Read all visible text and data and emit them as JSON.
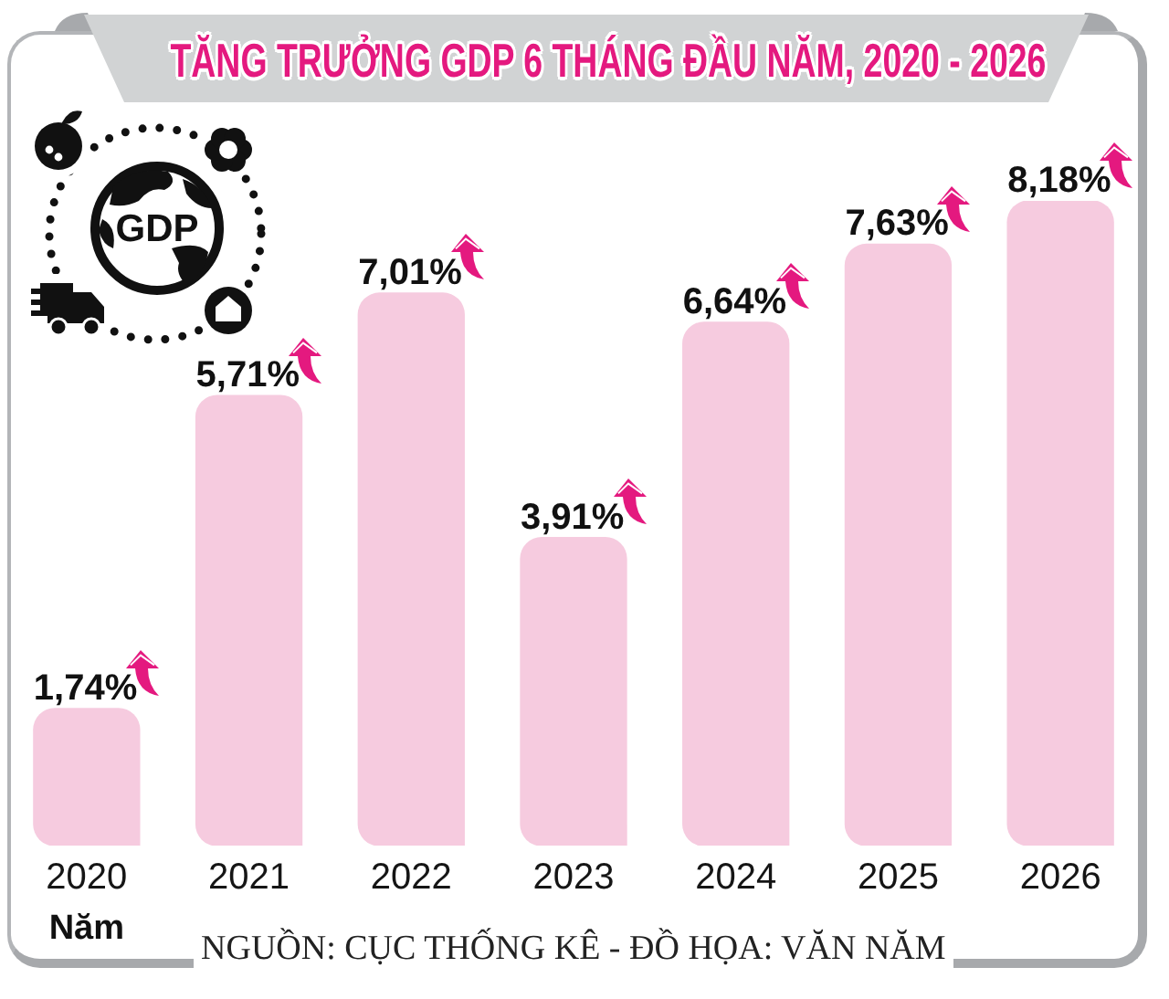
{
  "chart_data": {
    "type": "bar",
    "title": "TĂNG TRƯỞNG GDP 6 THÁNG ĐẦU NĂM, 2020 - 2026",
    "xlabel": "Năm",
    "categories": [
      "2020",
      "2021",
      "2022",
      "2023",
      "2024",
      "2025",
      "2026"
    ],
    "values": [
      1.74,
      5.71,
      7.01,
      3.91,
      6.64,
      7.63,
      8.18
    ],
    "value_labels": [
      "1,74%",
      "5,71%",
      "7,01%",
      "3,91%",
      "6,64%",
      "7,63%",
      "8,18%"
    ],
    "color": "#f6cbdf",
    "tick_labels": "x",
    "annotations": [
      "NGUỒN: CỤC THỐNG KÊ - ĐỒ HỌA: VĂN NĂM",
      "GDP"
    ]
  }
}
